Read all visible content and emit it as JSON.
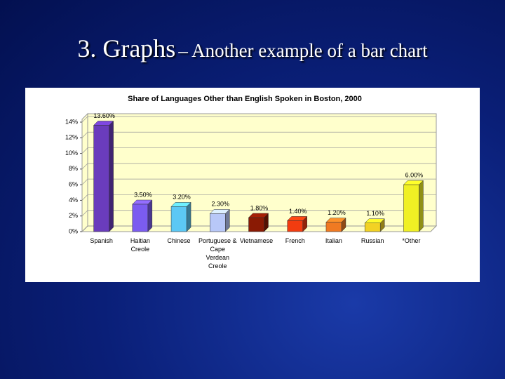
{
  "slide": {
    "title": "3. Graphs",
    "title_rest": "– Another example of a bar chart"
  },
  "chart_data": {
    "type": "bar",
    "title": "Share of Languages Other than English Spoken in Boston, 2000",
    "categories": [
      "Spanish",
      "Haitian Creole",
      "Chinese",
      "Portuguese & Cape Verdean Creole",
      "Vietnamese",
      "French",
      "Italian",
      "Russian",
      "*Other"
    ],
    "values": [
      13.6,
      3.5,
      3.2,
      2.3,
      1.8,
      1.4,
      1.2,
      1.1,
      6.0
    ],
    "value_labels": [
      "13.60%",
      "3.50%",
      "3.20%",
      "2.30%",
      "1.80%",
      "1.40%",
      "1.20%",
      "1.10%",
      "6.00%"
    ],
    "colors": [
      "#6a3cbc",
      "#7b5cf0",
      "#5cc8f4",
      "#b8c8f8",
      "#8a1a04",
      "#f23c10",
      "#f07a22",
      "#f2d224",
      "#f0f024"
    ],
    "ylim": [
      0,
      14
    ],
    "yticks": [
      {
        "value": 0,
        "label": "0%"
      },
      {
        "value": 2,
        "label": "2%"
      },
      {
        "value": 4,
        "label": "4%"
      },
      {
        "value": 6,
        "label": "6%"
      },
      {
        "value": 8,
        "label": "8%"
      },
      {
        "value": 10,
        "label": "10%"
      },
      {
        "value": 12,
        "label": "12%"
      },
      {
        "value": 14,
        "label": "14%"
      }
    ],
    "grid": true
  }
}
